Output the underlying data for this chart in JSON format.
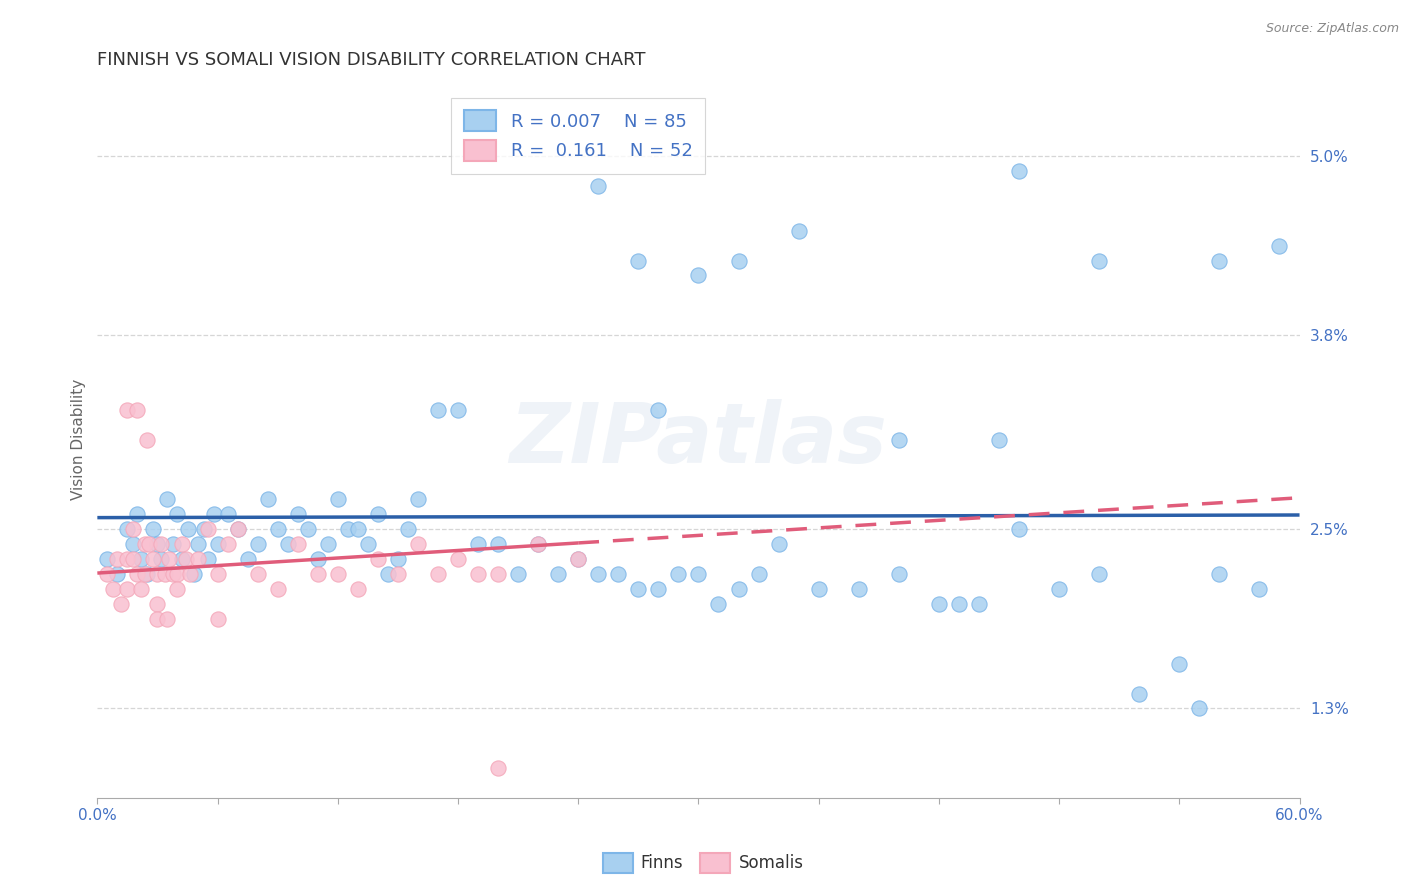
{
  "title": "FINNISH VS SOMALI VISION DISABILITY CORRELATION CHART",
  "source": "Source: ZipAtlas.com",
  "ylabel": "Vision Disability",
  "xlim": [
    0.0,
    0.6
  ],
  "ylim": [
    0.007,
    0.055
  ],
  "yticks": [
    0.013,
    0.025,
    0.038,
    0.05
  ],
  "ytick_labels": [
    "1.3%",
    "2.5%",
    "3.8%",
    "5.0%"
  ],
  "xticks": [
    0.0,
    0.06,
    0.12,
    0.18,
    0.24,
    0.3,
    0.36,
    0.42,
    0.48,
    0.54,
    0.6
  ],
  "xtick_labels_show": [
    "0.0%",
    "",
    "",
    "",
    "",
    "",
    "",
    "",
    "",
    "",
    "60.0%"
  ],
  "finns_color": "#A8D0F0",
  "finns_edge_color": "#7EB6E8",
  "somalis_color": "#F9C0D0",
  "somalis_edge_color": "#F4A7B9",
  "finns_line_color": "#2B5FA8",
  "somalis_line_color": "#E05C7A",
  "background_color": "#FFFFFF",
  "grid_color": "#CCCCCC",
  "legend_r_finns": "0.007",
  "legend_n_finns": "85",
  "legend_r_somalis": "0.161",
  "legend_n_somalis": "52",
  "watermark": "ZIPatlas",
  "title_fontsize": 13,
  "axis_label_fontsize": 11,
  "tick_fontsize": 11,
  "finns_x": [
    0.005,
    0.01,
    0.015,
    0.018,
    0.02,
    0.022,
    0.025,
    0.028,
    0.03,
    0.032,
    0.035,
    0.038,
    0.04,
    0.042,
    0.045,
    0.048,
    0.05,
    0.053,
    0.055,
    0.058,
    0.06,
    0.065,
    0.07,
    0.075,
    0.08,
    0.085,
    0.09,
    0.095,
    0.1,
    0.105,
    0.11,
    0.115,
    0.12,
    0.125,
    0.13,
    0.135,
    0.14,
    0.145,
    0.15,
    0.155,
    0.16,
    0.17,
    0.18,
    0.19,
    0.2,
    0.21,
    0.22,
    0.23,
    0.24,
    0.25,
    0.26,
    0.27,
    0.28,
    0.29,
    0.3,
    0.31,
    0.32,
    0.33,
    0.34,
    0.36,
    0.38,
    0.4,
    0.42,
    0.44,
    0.46,
    0.48,
    0.5,
    0.52,
    0.54,
    0.56,
    0.58,
    0.25,
    0.3,
    0.35,
    0.4,
    0.45,
    0.5,
    0.27,
    0.32,
    0.43,
    0.46,
    0.28,
    0.56,
    0.59,
    0.55
  ],
  "finns_y": [
    0.023,
    0.022,
    0.025,
    0.024,
    0.026,
    0.023,
    0.022,
    0.025,
    0.024,
    0.023,
    0.027,
    0.024,
    0.026,
    0.023,
    0.025,
    0.022,
    0.024,
    0.025,
    0.023,
    0.026,
    0.024,
    0.026,
    0.025,
    0.023,
    0.024,
    0.027,
    0.025,
    0.024,
    0.026,
    0.025,
    0.023,
    0.024,
    0.027,
    0.025,
    0.025,
    0.024,
    0.026,
    0.022,
    0.023,
    0.025,
    0.027,
    0.033,
    0.033,
    0.024,
    0.024,
    0.022,
    0.024,
    0.022,
    0.023,
    0.022,
    0.022,
    0.021,
    0.021,
    0.022,
    0.022,
    0.02,
    0.021,
    0.022,
    0.024,
    0.021,
    0.021,
    0.022,
    0.02,
    0.02,
    0.025,
    0.021,
    0.022,
    0.014,
    0.016,
    0.022,
    0.021,
    0.048,
    0.042,
    0.045,
    0.031,
    0.031,
    0.043,
    0.043,
    0.043,
    0.02,
    0.049,
    0.033,
    0.043,
    0.044,
    0.013
  ],
  "somalis_x": [
    0.005,
    0.008,
    0.01,
    0.012,
    0.015,
    0.015,
    0.018,
    0.018,
    0.02,
    0.022,
    0.024,
    0.024,
    0.026,
    0.028,
    0.03,
    0.03,
    0.032,
    0.034,
    0.036,
    0.038,
    0.04,
    0.04,
    0.042,
    0.044,
    0.046,
    0.05,
    0.055,
    0.06,
    0.065,
    0.07,
    0.08,
    0.09,
    0.1,
    0.11,
    0.12,
    0.13,
    0.14,
    0.15,
    0.16,
    0.17,
    0.18,
    0.19,
    0.2,
    0.22,
    0.24,
    0.015,
    0.02,
    0.025,
    0.03,
    0.035,
    0.06,
    0.2
  ],
  "somalis_y": [
    0.022,
    0.021,
    0.023,
    0.02,
    0.023,
    0.021,
    0.023,
    0.025,
    0.022,
    0.021,
    0.024,
    0.022,
    0.024,
    0.023,
    0.022,
    0.02,
    0.024,
    0.022,
    0.023,
    0.022,
    0.022,
    0.021,
    0.024,
    0.023,
    0.022,
    0.023,
    0.025,
    0.022,
    0.024,
    0.025,
    0.022,
    0.021,
    0.024,
    0.022,
    0.022,
    0.021,
    0.023,
    0.022,
    0.024,
    0.022,
    0.023,
    0.022,
    0.022,
    0.024,
    0.023,
    0.033,
    0.033,
    0.031,
    0.019,
    0.019,
    0.019,
    0.009
  ]
}
